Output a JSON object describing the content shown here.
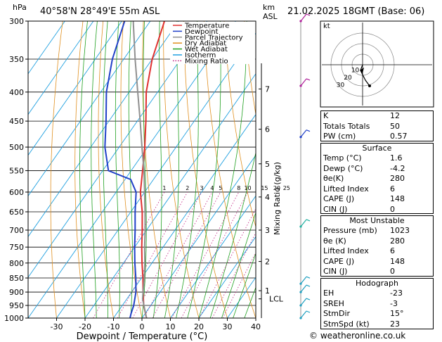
{
  "header": {
    "pressure_unit": "hPa",
    "station": "40°58'N  28°49'E  55m  ASL",
    "km_unit": "km",
    "asl_unit": "ASL",
    "datetime": "21.02.2025  18GMT  (Base: 06)"
  },
  "legend": [
    {
      "label": "Temperature",
      "color": "#e03030"
    },
    {
      "label": "Dewpoint",
      "color": "#2040c8"
    },
    {
      "label": "Parcel Trajectory",
      "color": "#909090"
    },
    {
      "label": "Dry Adiabat",
      "color": "#e09020"
    },
    {
      "label": "Wet Adiabat",
      "color": "#20a020"
    },
    {
      "label": "Isotherm",
      "color": "#20a0e0"
    },
    {
      "label": "Mixing Ratio",
      "color": "#c02080"
    }
  ],
  "chart_data": {
    "type": "line",
    "title": "40°58'N  28°49'E  55m  ASL",
    "xlabel": "Dewpoint / Temperature (°C)",
    "ylabel": "hPa",
    "y2label": "Mixing Ratio (g/kg)",
    "x_ticks": [
      -30,
      -20,
      -10,
      0,
      10,
      20,
      30,
      40
    ],
    "x_tick_labels": [
      "-30",
      "-20",
      "-10",
      "0",
      "10",
      "20",
      "30",
      "40"
    ],
    "xlim": [
      -40,
      40
    ],
    "pressure_levels": [
      300,
      350,
      400,
      450,
      500,
      550,
      600,
      650,
      700,
      750,
      800,
      850,
      900,
      950,
      1000
    ],
    "pressure_labels": [
      "300",
      "350",
      "400",
      "450",
      "500",
      "550",
      "600",
      "650",
      "700",
      "750",
      "800",
      "850",
      "900",
      "950",
      "1000"
    ],
    "km_ticks": [
      {
        "km": "1",
        "p": 895
      },
      {
        "km": "2",
        "p": 795
      },
      {
        "km": "3",
        "p": 700
      },
      {
        "km": "4",
        "p": 612
      },
      {
        "km": "5",
        "p": 535
      },
      {
        "km": "6",
        "p": 465
      },
      {
        "km": "7",
        "p": 395
      }
    ],
    "lcl": {
      "label": "LCL",
      "p": 925
    },
    "mixing_ratio_labels": [
      "1",
      "2",
      "3",
      "4",
      "5",
      "8",
      "10",
      "15",
      "20",
      "25"
    ],
    "mixing_ratio_values": [
      1,
      2,
      3,
      4,
      5,
      8,
      10,
      15,
      20,
      25
    ],
    "series": [
      {
        "name": "Temperature",
        "color": "#e03030",
        "points": [
          [
            1000,
            1.6
          ],
          [
            950,
            -2.5
          ],
          [
            900,
            -6
          ],
          [
            850,
            -9.5
          ],
          [
            800,
            -13.5
          ],
          [
            750,
            -17.5
          ],
          [
            700,
            -21.5
          ],
          [
            650,
            -26
          ],
          [
            600,
            -31.5
          ],
          [
            550,
            -36
          ],
          [
            500,
            -41
          ],
          [
            450,
            -47
          ],
          [
            400,
            -54
          ],
          [
            350,
            -60
          ],
          [
            300,
            -65
          ]
        ]
      },
      {
        "name": "Dewpoint",
        "color": "#2040c8",
        "points": [
          [
            1000,
            -4.2
          ],
          [
            980,
            -5
          ],
          [
            950,
            -6
          ],
          [
            900,
            -8.5
          ],
          [
            850,
            -12
          ],
          [
            800,
            -16
          ],
          [
            750,
            -20
          ],
          [
            700,
            -24
          ],
          [
            650,
            -28.5
          ],
          [
            600,
            -33
          ],
          [
            570,
            -38
          ],
          [
            550,
            -48
          ],
          [
            500,
            -55
          ],
          [
            450,
            -61
          ],
          [
            400,
            -68
          ],
          [
            350,
            -74
          ],
          [
            300,
            -79
          ]
        ]
      },
      {
        "name": "Parcel Trajectory",
        "color": "#909090",
        "points": [
          [
            1000,
            1.6
          ],
          [
            925,
            -4.5
          ],
          [
            900,
            -6
          ],
          [
            850,
            -9
          ],
          [
            800,
            -12.5
          ],
          [
            750,
            -16.5
          ],
          [
            700,
            -20.5
          ],
          [
            650,
            -25
          ],
          [
            600,
            -30
          ],
          [
            550,
            -35.5
          ],
          [
            500,
            -42
          ],
          [
            450,
            -49
          ],
          [
            400,
            -57
          ],
          [
            350,
            -66
          ],
          [
            300,
            -76
          ]
        ]
      }
    ]
  },
  "hodograph": {
    "unit": "kt",
    "ring_labels": [
      "10",
      "20",
      "30"
    ]
  },
  "indices": [
    {
      "label": "K",
      "value": "12"
    },
    {
      "label": "Totals Totals",
      "value": "50"
    },
    {
      "label": "PW (cm)",
      "value": "0.57"
    }
  ],
  "surface": {
    "title": "Surface",
    "rows": [
      {
        "label": "Temp (°C)",
        "value": "1.6"
      },
      {
        "label": "Dewp (°C)",
        "value": "-4.2"
      },
      {
        "label": "θe(K)",
        "value": "280"
      },
      {
        "label": "Lifted Index",
        "value": "6"
      },
      {
        "label": "CAPE (J)",
        "value": "148"
      },
      {
        "label": "CIN (J)",
        "value": "0"
      }
    ]
  },
  "most_unstable": {
    "title": "Most Unstable",
    "rows": [
      {
        "label": "Pressure (mb)",
        "value": "1023"
      },
      {
        "label": "θe (K)",
        "value": "280"
      },
      {
        "label": "Lifted Index",
        "value": "6"
      },
      {
        "label": "CAPE (J)",
        "value": "148"
      },
      {
        "label": "CIN (J)",
        "value": "0"
      }
    ]
  },
  "hodograph_params": {
    "title": "Hodograph",
    "rows": [
      {
        "label": "EH",
        "value": "-23"
      },
      {
        "label": "SREH",
        "value": "-3"
      },
      {
        "label": "StmDir",
        "value": "15°"
      },
      {
        "label": "StmSpd (kt)",
        "value": "23"
      }
    ]
  },
  "copyright": "© weatheronline.co.uk"
}
